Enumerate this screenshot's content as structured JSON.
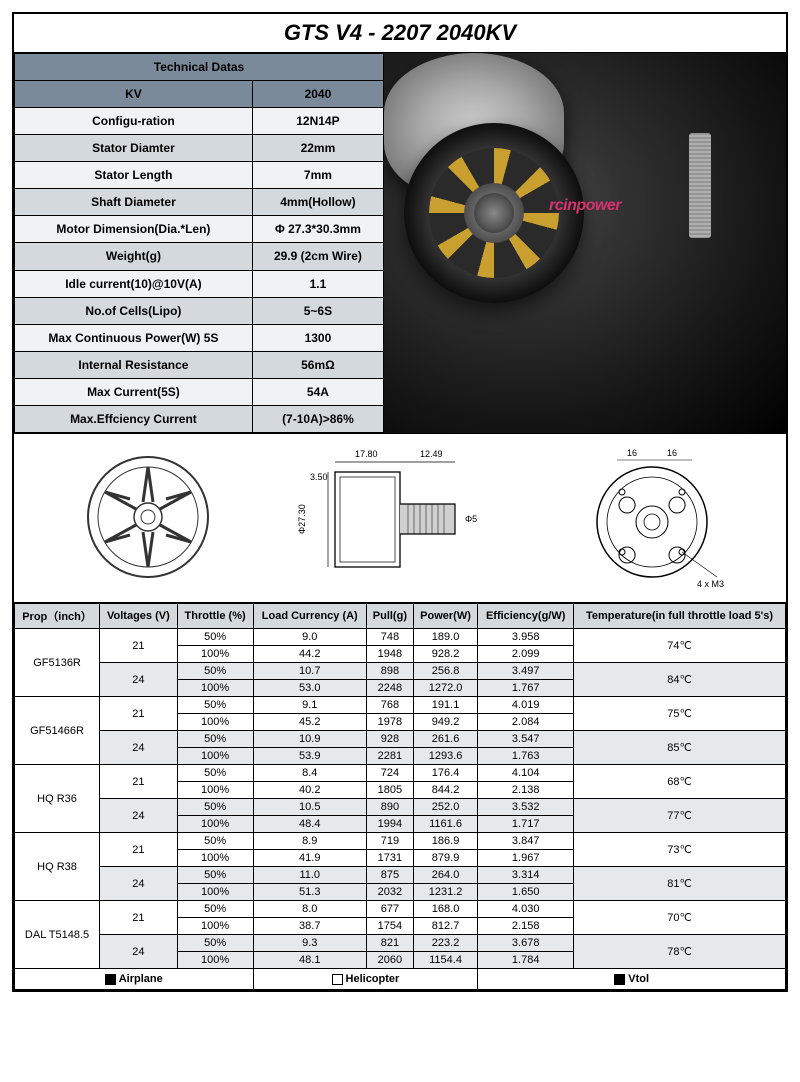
{
  "title": "GTS V4 - 2207 2040KV",
  "tech": {
    "header": "Technical Datas",
    "rows": [
      {
        "label": "KV",
        "value": "2040"
      },
      {
        "label": "Configu-ration",
        "value": "12N14P"
      },
      {
        "label": "Stator Diamter",
        "value": "22mm"
      },
      {
        "label": "Stator Length",
        "value": "7mm"
      },
      {
        "label": "Shaft Diameter",
        "value": "4mm(Hollow)"
      },
      {
        "label": "Motor Dimension(Dia.*Len)",
        "value": "Φ 27.3*30.3mm"
      },
      {
        "label": "Weight(g)",
        "value": "29.9 (2cm Wire)"
      },
      {
        "label": "Idle current(10)@10V(A)",
        "value": "1.1"
      },
      {
        "label": "No.of Cells(Lipo)",
        "value": "5~6S"
      },
      {
        "label": "Max Continuous Power(W) 5S",
        "value": "1300"
      },
      {
        "label": "Internal Resistance",
        "value": "56mΩ"
      },
      {
        "label": "Max Current(5S)",
        "value": "54A"
      },
      {
        "label": "Max.Effciency Current",
        "value": "(7-10A)>86%"
      }
    ]
  },
  "dims": {
    "d1": "3.50",
    "d2": "17.80",
    "d3": "12.49",
    "d4": "Φ27.30",
    "d5": "Φ5",
    "d6": "16",
    "d7": "16",
    "d8": "4 x M3"
  },
  "perf": {
    "headers": [
      "Prop（inch）",
      "Voltages (V)",
      "Throttle (%)",
      "Load Currency (A)",
      "Pull(g)",
      "Power(W)",
      "Efficiency(g/W)",
      "Temperature(in full throttle load 5's)"
    ],
    "groups": [
      {
        "prop": "GF5136R",
        "blocks": [
          {
            "v": "21",
            "temp": "74℃",
            "rows": [
              [
                "50%",
                "9.0",
                "748",
                "189.0",
                "3.958"
              ],
              [
                "100%",
                "44.2",
                "1948",
                "928.2",
                "2.099"
              ]
            ]
          },
          {
            "v": "24",
            "temp": "84℃",
            "rows": [
              [
                "50%",
                "10.7",
                "898",
                "256.8",
                "3.497"
              ],
              [
                "100%",
                "53.0",
                "2248",
                "1272.0",
                "1.767"
              ]
            ]
          }
        ]
      },
      {
        "prop": "GF51466R",
        "blocks": [
          {
            "v": "21",
            "temp": "75℃",
            "rows": [
              [
                "50%",
                "9.1",
                "768",
                "191.1",
                "4.019"
              ],
              [
                "100%",
                "45.2",
                "1978",
                "949.2",
                "2.084"
              ]
            ]
          },
          {
            "v": "24",
            "temp": "85℃",
            "rows": [
              [
                "50%",
                "10.9",
                "928",
                "261.6",
                "3.547"
              ],
              [
                "100%",
                "53.9",
                "2281",
                "1293.6",
                "1.763"
              ]
            ]
          }
        ]
      },
      {
        "prop": "HQ R36",
        "blocks": [
          {
            "v": "21",
            "temp": "68℃",
            "rows": [
              [
                "50%",
                "8.4",
                "724",
                "176.4",
                "4.104"
              ],
              [
                "100%",
                "40.2",
                "1805",
                "844.2",
                "2.138"
              ]
            ]
          },
          {
            "v": "24",
            "temp": "77℃",
            "rows": [
              [
                "50%",
                "10.5",
                "890",
                "252.0",
                "3.532"
              ],
              [
                "100%",
                "48.4",
                "1994",
                "1161.6",
                "1.717"
              ]
            ]
          }
        ]
      },
      {
        "prop": "HQ R38",
        "blocks": [
          {
            "v": "21",
            "temp": "73℃",
            "rows": [
              [
                "50%",
                "8.9",
                "719",
                "186.9",
                "3.847"
              ],
              [
                "100%",
                "41.9",
                "1731",
                "879.9",
                "1.967"
              ]
            ]
          },
          {
            "v": "24",
            "temp": "81℃",
            "rows": [
              [
                "50%",
                "11.0",
                "875",
                "264.0",
                "3.314"
              ],
              [
                "100%",
                "51.3",
                "2032",
                "1231.2",
                "1.650"
              ]
            ]
          }
        ]
      },
      {
        "prop": "DAL T5148.5",
        "blocks": [
          {
            "v": "21",
            "temp": "70℃",
            "rows": [
              [
                "50%",
                "8.0",
                "677",
                "168.0",
                "4.030"
              ],
              [
                "100%",
                "38.7",
                "1754",
                "812.7",
                "2.158"
              ]
            ]
          },
          {
            "v": "24",
            "temp": "78℃",
            "rows": [
              [
                "50%",
                "9.3",
                "821",
                "223.2",
                "3.678"
              ],
              [
                "100%",
                "48.1",
                "2060",
                "1154.4",
                "1.784"
              ]
            ]
          }
        ]
      }
    ]
  },
  "footer": {
    "airplane": "Airplane",
    "heli": "Helicopter",
    "vtol": "Vtol"
  },
  "colors": {
    "header_bg": "#7a8a9a",
    "row_odd": "#d4d9de",
    "row_even": "#f0f2f4",
    "shade": "#e6e9ec",
    "brand": "#d6336c",
    "brand_text": "rcinpower"
  }
}
